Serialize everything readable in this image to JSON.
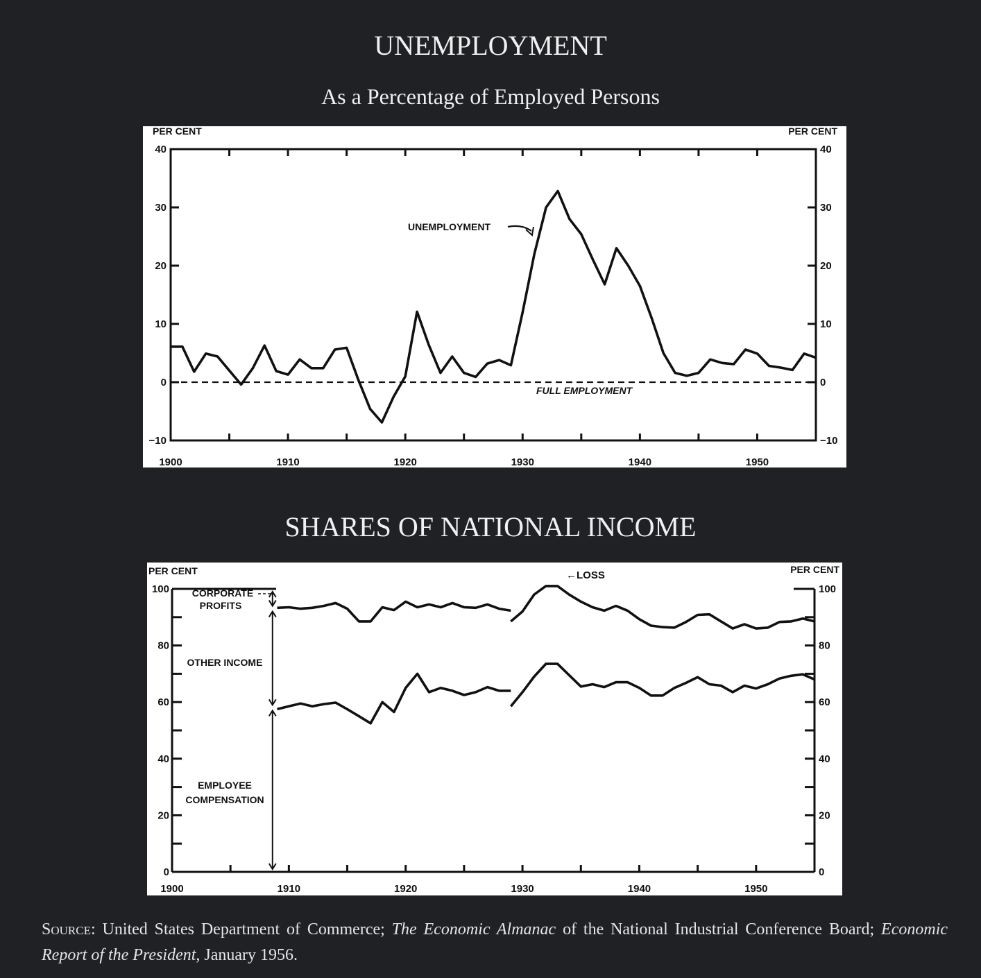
{
  "colors": {
    "background": "#202124",
    "panel": "#ffffff",
    "ink": "#111111",
    "heading": "#f0f0f0"
  },
  "chart_data": [
    {
      "type": "line",
      "title": "UNEMPLOYMENT",
      "subtitle": "As a Percentage of Employed Persons",
      "ylabel_left": "PER CENT",
      "ylabel_right": "PER CENT",
      "xlim": [
        1900,
        1955
      ],
      "ylim": [
        -10,
        40
      ],
      "x_ticks": [
        1900,
        1910,
        1920,
        1930,
        1940,
        1950
      ],
      "y_ticks": [
        -10,
        0,
        10,
        20,
        30,
        40
      ],
      "y_tick_labels": [
        "−10",
        "0",
        "10",
        "20",
        "30",
        "40"
      ],
      "grid": false,
      "series": [
        {
          "name": "UNEMPLOYMENT",
          "x": [
            1900,
            1901,
            1902,
            1903,
            1904,
            1905,
            1906,
            1907,
            1908,
            1909,
            1910,
            1911,
            1912,
            1913,
            1914,
            1915,
            1916,
            1917,
            1918,
            1919,
            1920,
            1921,
            1922,
            1923,
            1924,
            1925,
            1926,
            1927,
            1928,
            1929,
            1930,
            1931,
            1932,
            1933,
            1934,
            1935,
            1936,
            1937,
            1938,
            1939,
            1940,
            1941,
            1942,
            1943,
            1944,
            1945,
            1946,
            1947,
            1948,
            1949,
            1950,
            1951,
            1952,
            1953,
            1954,
            1955
          ],
          "y": [
            6.1,
            6.1,
            1.8,
            4.9,
            4.4,
            2,
            -0.4,
            2.4,
            6.3,
            1.9,
            1.3,
            3.9,
            2.4,
            2.4,
            5.6,
            5.9,
            0.4,
            -4.6,
            -6.9,
            -2.5,
            1,
            12.1,
            6.4,
            1.6,
            4.4,
            1.6,
            0.9,
            3.2,
            3.8,
            2.9,
            12,
            22,
            30,
            32.8,
            28,
            25.4,
            21,
            16.8,
            23,
            20,
            16.5,
            11,
            5,
            1.6,
            1.1,
            1.6,
            3.9,
            3.3,
            3.1,
            5.6,
            4.9,
            2.8,
            2.5,
            2.1,
            4.9,
            4.2
          ]
        }
      ],
      "reference_line": {
        "y": 0,
        "label": "FULL EMPLOYMENT",
        "style": "dashed"
      },
      "annotations": [
        {
          "text": "UNEMPLOYMENT",
          "points_to": "1931"
        }
      ]
    },
    {
      "type": "line",
      "title": "SHARES OF NATIONAL INCOME",
      "ylabel_left": "PER CENT",
      "ylabel_right": "PER CENT",
      "xlim": [
        1900,
        1955
      ],
      "ylim": [
        0,
        100
      ],
      "x_ticks": [
        1900,
        1910,
        1920,
        1930,
        1940,
        1950
      ],
      "y_ticks": [
        0,
        20,
        40,
        60,
        80,
        100
      ],
      "grid": false,
      "series": [
        {
          "name": "CORPORATE PROFITS",
          "segments": [
            {
              "x": [
                1909,
                1910,
                1911,
                1912,
                1913,
                1914,
                1915,
                1916,
                1917,
                1918,
                1919,
                1920,
                1921,
                1922,
                1923,
                1924,
                1925,
                1926,
                1927,
                1928,
                1929
              ],
              "y": [
                93.3,
                93.5,
                93,
                93.3,
                94,
                95,
                93,
                88.5,
                88.5,
                93.5,
                92.5,
                95.5,
                93.5,
                94.5,
                93.5,
                95,
                93.5,
                93.3,
                94.5,
                93,
                92.3
              ]
            },
            {
              "x": [
                1929,
                1930,
                1931,
                1932,
                1933,
                1934,
                1935,
                1936,
                1937,
                1938,
                1939,
                1940,
                1941,
                1942,
                1943,
                1944,
                1945,
                1946,
                1947,
                1948,
                1949,
                1950,
                1951,
                1952,
                1953,
                1954,
                1955
              ],
              "y": [
                88.5,
                92,
                98,
                101,
                101,
                98,
                95.5,
                93.5,
                92.3,
                94,
                92.3,
                89.3,
                87,
                86.5,
                86.3,
                88.3,
                90.8,
                91,
                88.5,
                86,
                87.5,
                86,
                86.3,
                88.3,
                88.5,
                89.5,
                88.5
              ]
            }
          ]
        },
        {
          "name": "OTHER INCOME / EMPLOYEE COMPENSATION boundary",
          "segments": [
            {
              "x": [
                1909,
                1910,
                1911,
                1912,
                1913,
                1914,
                1915,
                1916,
                1917,
                1918,
                1919,
                1920,
                1921,
                1922,
                1923,
                1924,
                1925,
                1926,
                1927,
                1928,
                1929
              ],
              "y": [
                57.5,
                58.5,
                59.5,
                58.5,
                59.3,
                59.8,
                57.5,
                55,
                52.5,
                60,
                56.5,
                65,
                70,
                63.5,
                65,
                64,
                62.5,
                63.5,
                65.3,
                64,
                64
              ]
            },
            {
              "x": [
                1929,
                1930,
                1931,
                1932,
                1933,
                1934,
                1935,
                1936,
                1937,
                1938,
                1939,
                1940,
                1941,
                1942,
                1943,
                1944,
                1945,
                1946,
                1947,
                1948,
                1949,
                1950,
                1951,
                1952,
                1953,
                1954,
                1955
              ],
              "y": [
                58.5,
                63.5,
                69,
                73.5,
                73.5,
                69.5,
                65.5,
                66.3,
                65.3,
                67,
                67,
                65,
                62.3,
                62.3,
                65,
                66.8,
                68.8,
                66.3,
                65.8,
                63.5,
                65.8,
                64.8,
                66.3,
                68.3,
                69.3,
                69.8,
                68
              ]
            }
          ]
        }
      ],
      "band_labels": [
        {
          "text": "CORPORATE PROFITS",
          "range": [
            93,
            100
          ]
        },
        {
          "text": "OTHER INCOME",
          "range": [
            58,
            93
          ]
        },
        {
          "text": "EMPLOYEE COMPENSATION",
          "range": [
            0,
            58
          ]
        }
      ],
      "annotations": [
        {
          "text": "←LOSS",
          "points_to": "1932"
        }
      ]
    }
  ],
  "page": {
    "title1": "UNEMPLOYMENT",
    "subtitle1": "As a Percentage of Employed Persons",
    "title2": "SHARES OF NATIONAL INCOME",
    "chart1": {
      "ylabel_left": "PER CENT",
      "ylabel_right": "PER CENT",
      "annotation": "UNEMPLOYMENT",
      "reference_label": "FULL EMPLOYMENT"
    },
    "chart2": {
      "ylabel_left": "PER CENT",
      "ylabel_right": "PER CENT",
      "label_corporate_line1": "CORPORATE",
      "label_corporate_line2": "PROFITS",
      "label_other": "OTHER INCOME",
      "label_employee_line1": "EMPLOYEE",
      "label_employee_line2": "COMPENSATION",
      "annotation_loss": "←LOSS"
    },
    "source": {
      "label": "Source",
      "part1": ": United States Department of Commerce; ",
      "italic1": "The Economic Almanac",
      "part2": " of the National Industrial Conference Board; ",
      "italic2": "Economic Report of the President",
      "part3": ", January 1956."
    }
  }
}
